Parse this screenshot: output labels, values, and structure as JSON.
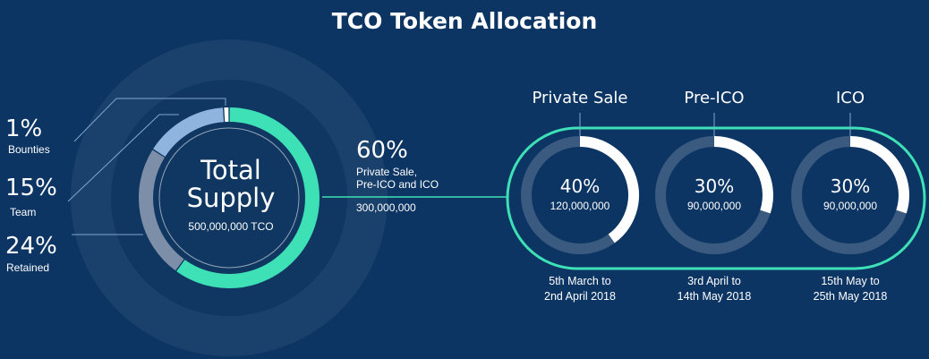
{
  "chart_data": [
    {
      "type": "pie",
      "title": "TCO Token Allocation",
      "center": {
        "line1": "Total",
        "line2": "Supply",
        "amount": "500,000,000 TCO"
      },
      "slices": [
        {
          "label": "Bounties",
          "value": 1,
          "display": "1%",
          "color": "#ffffff"
        },
        {
          "label": "Team",
          "value": 15,
          "display": "15%",
          "color": "#8fb4dd"
        },
        {
          "label": "Retained",
          "value": 24,
          "display": "24%",
          "color": "#7d8fa8"
        },
        {
          "label": "Private Sale, Pre-ICO and ICO",
          "value": 60,
          "display": "60%",
          "color": "#3ee0b6"
        }
      ],
      "callout": {
        "pct": "60%",
        "line1": "Private Sale,",
        "line2": "Pre-ICO and ICO",
        "amount": "300,000,000"
      }
    },
    {
      "type": "pie",
      "phases": [
        {
          "title": "Private Sale",
          "value": 40,
          "pct": "40%",
          "amount": "120,000,000",
          "date1": "5th March to",
          "date2": "2nd April 2018"
        },
        {
          "title": "Pre-ICO",
          "value": 30,
          "pct": "30%",
          "amount": "90,000,000",
          "date1": "3rd April to",
          "date2": "14th May 2018"
        },
        {
          "title": "ICO",
          "value": 30,
          "pct": "30%",
          "amount": "90,000,000",
          "date1": "15th May to",
          "date2": "25th May 2018"
        }
      ]
    }
  ],
  "colors": {
    "background": "#0c3563",
    "accent": "#3ee0b6",
    "ring_track": "#3a5a80"
  }
}
